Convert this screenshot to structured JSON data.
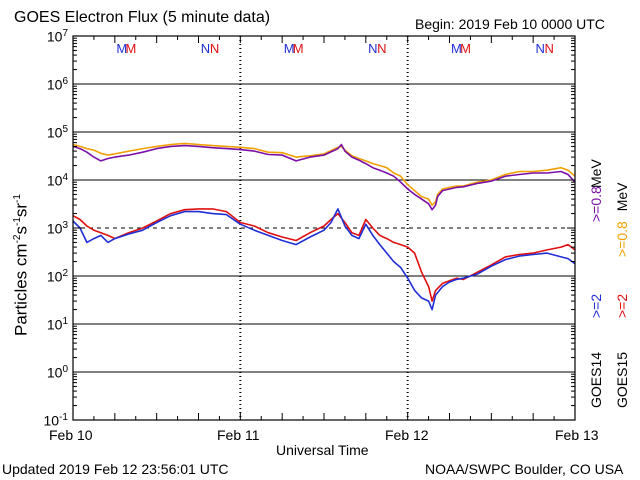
{
  "header": {
    "title": "GOES Electron Flux (5 minute data)",
    "begin": "Begin: 2019 Feb 10 0000 UTC"
  },
  "footer": {
    "updated": "Updated 2019 Feb 12 23:56:01 UTC",
    "credit": "NOAA/SWPC Boulder, CO USA"
  },
  "legend": {
    "goes14_sat": "GOES14",
    "goes15_sat": "GOES15",
    "goes14_2mev": ">=2",
    "goes15_2mev": ">=2",
    "goes14_08mev": ">=0.8",
    "goes15_08mev": ">=0.8",
    "mev_label_upper": "MeV",
    "mev_label_lower": "MeV"
  },
  "colors": {
    "goes14_2mev": "#1f2fd6",
    "goes15_2mev": "#e01010",
    "goes14_08mev": "#7a0fa8",
    "goes15_08mev": "#f0a000",
    "frame": "#000000",
    "threshold_dashes": "#000000",
    "marker_M14": "#1f2fd6",
    "marker_M15": "#e01010"
  },
  "chart_data": {
    "type": "line",
    "title": "GOES Electron Flux (5 minute data)",
    "xlabel": "Universal Time",
    "ylabel": "Particles cm-2s-1sr-1",
    "ylabel_parts": [
      "Particles cm",
      "-2",
      "s",
      "-1",
      "sr",
      "-1"
    ],
    "y_scale": "log",
    "ylim": [
      0.1,
      10000000
    ],
    "y_ticks": [
      {
        "value": 10000000,
        "base": "10",
        "exp": "7"
      },
      {
        "value": 1000000,
        "base": "10",
        "exp": "6"
      },
      {
        "value": 100000,
        "base": "10",
        "exp": "5"
      },
      {
        "value": 10000,
        "base": "10",
        "exp": "4"
      },
      {
        "value": 1000,
        "base": "10",
        "exp": "3"
      },
      {
        "value": 100,
        "base": "10",
        "exp": "2"
      },
      {
        "value": 10,
        "base": "10",
        "exp": "1"
      },
      {
        "value": 1,
        "base": "10",
        "exp": "0"
      },
      {
        "value": 0.1,
        "base": "10",
        "exp": "-1"
      }
    ],
    "xlim": [
      0,
      72
    ],
    "x_unit": "hours since 2019 Feb 10 0000 UTC",
    "x_ticks": [
      {
        "value": 0,
        "label": "Feb 10"
      },
      {
        "value": 24,
        "label": "Feb 11"
      },
      {
        "value": 48,
        "label": "Feb 12"
      },
      {
        "value": 72,
        "label": "Feb 13"
      }
    ],
    "day_boundaries": [
      24,
      48
    ],
    "gridlines_y": [
      1000000,
      100000,
      10000,
      100,
      10,
      1
    ],
    "threshold_line": 1000,
    "markers": [
      {
        "x": 7,
        "label": "M",
        "sat": "14"
      },
      {
        "x": 8.3,
        "label": "M",
        "sat": "15"
      },
      {
        "x": 19,
        "label": "N",
        "sat": "14"
      },
      {
        "x": 20.3,
        "label": "N",
        "sat": "15"
      },
      {
        "x": 31,
        "label": "M",
        "sat": "14"
      },
      {
        "x": 32.3,
        "label": "M",
        "sat": "15"
      },
      {
        "x": 43,
        "label": "N",
        "sat": "14"
      },
      {
        "x": 44.3,
        "label": "N",
        "sat": "15"
      },
      {
        "x": 55,
        "label": "M",
        "sat": "14"
      },
      {
        "x": 56.3,
        "label": "M",
        "sat": "15"
      },
      {
        "x": 67,
        "label": "N",
        "sat": "14"
      },
      {
        "x": 68.3,
        "label": "N",
        "sat": "15"
      }
    ],
    "series": [
      {
        "name": "GOES15 >=0.8 MeV",
        "color_key": "goes15_08mev",
        "x": [
          0,
          1,
          2,
          3,
          4,
          5,
          6,
          8,
          10,
          12,
          14,
          16,
          18,
          20,
          22,
          24,
          26,
          28,
          30,
          32,
          34,
          36,
          38,
          38.5,
          39,
          40,
          41,
          42,
          43,
          44,
          45,
          46,
          47,
          48,
          49,
          50,
          51,
          51.5,
          52,
          52.3,
          53,
          54,
          55,
          56,
          58,
          60,
          62,
          64,
          66,
          68,
          70,
          71,
          72
        ],
        "y": [
          55000,
          50000,
          45000,
          42000,
          36000,
          33000,
          35000,
          40000,
          45000,
          50000,
          55000,
          58000,
          55000,
          52000,
          50000,
          48000,
          45000,
          38000,
          37000,
          30000,
          32000,
          35000,
          48000,
          50000,
          42000,
          32000,
          28000,
          25000,
          22000,
          20000,
          18000,
          14000,
          12000,
          8000,
          6000,
          4500,
          4000,
          3000,
          3500,
          5000,
          6500,
          7000,
          7500,
          7500,
          9000,
          10000,
          13000,
          15000,
          15000,
          16000,
          18000,
          16000,
          12000
        ]
      },
      {
        "name": "GOES14 >=0.8 MeV",
        "color_key": "goes14_08mev",
        "x": [
          0,
          1,
          2,
          3,
          4,
          5,
          6,
          8,
          10,
          12,
          14,
          16,
          18,
          20,
          22,
          24,
          26,
          28,
          30,
          32,
          34,
          36,
          38,
          38.5,
          39,
          40,
          41,
          42,
          43,
          44,
          45,
          46,
          47,
          48,
          49,
          50,
          51,
          51.5,
          52,
          52.3,
          53,
          54,
          55,
          56,
          58,
          60,
          62,
          64,
          66,
          68,
          70,
          71,
          72
        ],
        "y": [
          50000,
          45000,
          38000,
          30000,
          25000,
          28000,
          30000,
          33000,
          38000,
          45000,
          50000,
          52000,
          50000,
          47000,
          45000,
          43000,
          40000,
          34000,
          33000,
          25000,
          30000,
          33000,
          45000,
          55000,
          40000,
          30000,
          26000,
          22000,
          18000,
          16000,
          14000,
          12000,
          9000,
          6500,
          5000,
          4000,
          3200,
          2400,
          3000,
          4500,
          6000,
          6500,
          7000,
          7200,
          8500,
          9500,
          12000,
          13000,
          14000,
          14000,
          15000,
          13000,
          9000
        ]
      },
      {
        "name": "GOES15 >=2 MeV",
        "color_key": "goes15_2mev",
        "x": [
          0,
          1,
          2,
          3,
          4,
          5,
          6,
          8,
          10,
          12,
          14,
          16,
          18,
          20,
          22,
          24,
          26,
          28,
          30,
          32,
          34,
          36,
          37,
          38,
          39,
          40,
          41,
          42,
          43,
          44,
          45,
          46,
          47,
          48,
          49,
          50,
          51,
          51.5,
          52,
          53,
          54,
          55,
          56,
          58,
          60,
          62,
          64,
          66,
          68,
          70,
          71,
          72
        ],
        "y": [
          1800,
          1500,
          1100,
          900,
          800,
          700,
          600,
          800,
          1000,
          1400,
          2000,
          2400,
          2500,
          2500,
          2200,
          1300,
          1100,
          800,
          650,
          550,
          800,
          1100,
          1500,
          2000,
          1300,
          800,
          700,
          1500,
          1000,
          700,
          600,
          500,
          450,
          400,
          300,
          120,
          60,
          30,
          50,
          70,
          80,
          90,
          85,
          120,
          170,
          250,
          280,
          300,
          350,
          400,
          450,
          350
        ]
      },
      {
        "name": "GOES14 >=2 MeV",
        "color_key": "goes14_2mev",
        "x": [
          0,
          1,
          2,
          3,
          4,
          5,
          6,
          8,
          10,
          12,
          14,
          16,
          18,
          20,
          22,
          24,
          26,
          28,
          30,
          32,
          34,
          36,
          37,
          38,
          39,
          40,
          41,
          42,
          43,
          44,
          45,
          46,
          47,
          48,
          49,
          50,
          51,
          51.5,
          52,
          53,
          54,
          55,
          56,
          58,
          60,
          62,
          64,
          66,
          68,
          70,
          71,
          72
        ],
        "y": [
          1400,
          1000,
          500,
          600,
          700,
          500,
          600,
          750,
          900,
          1300,
          1800,
          2200,
          2200,
          2000,
          1900,
          1200,
          900,
          700,
          550,
          450,
          650,
          900,
          1300,
          2500,
          1100,
          700,
          600,
          1200,
          700,
          450,
          300,
          200,
          150,
          90,
          50,
          35,
          30,
          20,
          40,
          60,
          75,
          85,
          90,
          110,
          160,
          220,
          260,
          280,
          300,
          250,
          230,
          180
        ]
      }
    ]
  }
}
